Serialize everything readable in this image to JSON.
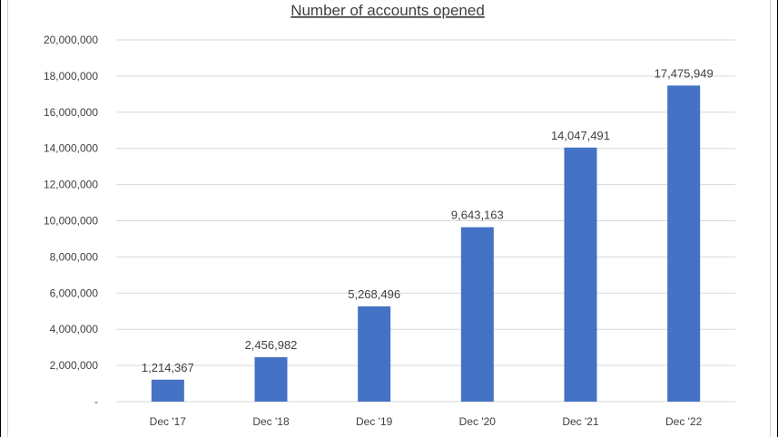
{
  "chart_data": {
    "type": "bar",
    "title": "Number of accounts opened",
    "categories": [
      "Dec '17",
      "Dec '18",
      "Dec '19",
      "Dec '20",
      "Dec '21",
      "Dec '22"
    ],
    "values": [
      1214367,
      2456982,
      5268496,
      9643163,
      14047491,
      17475949
    ],
    "value_labels": [
      "1,214,367",
      "2,456,982",
      "5,268,496",
      "9,643,163",
      "14,047,491",
      "17,475,949"
    ],
    "y_ticks": [
      0,
      2000000,
      4000000,
      6000000,
      8000000,
      10000000,
      12000000,
      14000000,
      16000000,
      18000000,
      20000000
    ],
    "y_tick_labels": [
      "-",
      "2,000,000",
      "4,000,000",
      "6,000,000",
      "8,000,000",
      "10,000,000",
      "12,000,000",
      "14,000,000",
      "16,000,000",
      "18,000,000",
      "20,000,000"
    ],
    "ylim": [
      0,
      20000000
    ],
    "xlabel": "",
    "ylabel": "",
    "grid": true,
    "legend": "none",
    "bar_color": "#4472C4",
    "grid_color": "#D9D9D9",
    "text_color": "#404040"
  }
}
